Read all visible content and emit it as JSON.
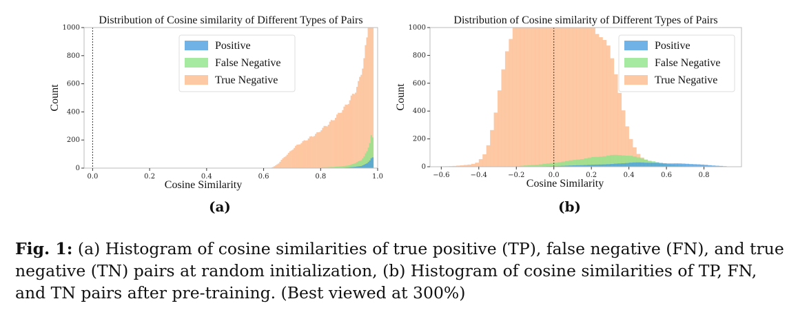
{
  "chart_data": [
    {
      "type": "histogram",
      "title": "Distribution of Cosine similarity of Different Types of Pairs",
      "xlabel": "Cosine Similarity",
      "ylabel": "Count",
      "xlim": [
        -0.03,
        1.0
      ],
      "ylim": [
        0,
        1000
      ],
      "xticks": [
        "0.0",
        "0.2",
        "0.4",
        "0.6",
        "0.8",
        "1.0"
      ],
      "yticks": [
        "0",
        "200",
        "400",
        "600",
        "800",
        "1000"
      ],
      "vline_at": 0.0,
      "legend_position": "upper-center",
      "bin_width": 0.005,
      "series": [
        {
          "name": "Positive",
          "color": "#4d9fe0",
          "bins": [
            [
              0.88,
              3
            ],
            [
              0.9,
              6
            ],
            [
              0.92,
              10
            ],
            [
              0.94,
              16
            ],
            [
              0.95,
              24
            ],
            [
              0.96,
              36
            ],
            [
              0.97,
              55
            ],
            [
              0.975,
              70
            ],
            [
              0.98,
              78
            ],
            [
              0.985,
              40
            ]
          ]
        },
        {
          "name": "False Negative",
          "color": "#90e38a",
          "bins": [
            [
              0.8,
              5
            ],
            [
              0.84,
              8
            ],
            [
              0.88,
              15
            ],
            [
              0.9,
              22
            ],
            [
              0.92,
              38
            ],
            [
              0.94,
              60
            ],
            [
              0.95,
              85
            ],
            [
              0.96,
              125
            ],
            [
              0.97,
              185
            ],
            [
              0.975,
              235
            ],
            [
              0.98,
              220
            ],
            [
              0.985,
              90
            ]
          ]
        },
        {
          "name": "True Negative",
          "color": "#fdbb8f",
          "bins": [
            [
              0.62,
              0
            ],
            [
              0.63,
              8
            ],
            [
              0.64,
              20
            ],
            [
              0.65,
              35
            ],
            [
              0.66,
              60
            ],
            [
              0.67,
              80
            ],
            [
              0.68,
              100
            ],
            [
              0.69,
              120
            ],
            [
              0.7,
              140
            ],
            [
              0.71,
              160
            ],
            [
              0.72,
              175
            ],
            [
              0.73,
              185
            ],
            [
              0.74,
              200
            ],
            [
              0.75,
              210
            ],
            [
              0.76,
              225
            ],
            [
              0.77,
              235
            ],
            [
              0.78,
              250
            ],
            [
              0.79,
              260
            ],
            [
              0.8,
              285
            ],
            [
              0.81,
              300
            ],
            [
              0.82,
              315
            ],
            [
              0.83,
              335
            ],
            [
              0.84,
              350
            ],
            [
              0.85,
              375
            ],
            [
              0.86,
              395
            ],
            [
              0.87,
              420
            ],
            [
              0.88,
              440
            ],
            [
              0.89,
              470
            ],
            [
              0.9,
              500
            ],
            [
              0.91,
              535
            ],
            [
              0.92,
              570
            ],
            [
              0.93,
              620
            ],
            [
              0.94,
              700
            ],
            [
              0.95,
              800
            ],
            [
              0.96,
              950
            ],
            [
              0.965,
              1000
            ],
            [
              0.97,
              1000
            ],
            [
              0.975,
              1000
            ],
            [
              0.98,
              1000
            ],
            [
              0.985,
              600
            ]
          ]
        }
      ]
    },
    {
      "type": "histogram",
      "title": "Distribution of Cosine similarity of Different Types of Pairs",
      "xlabel": "Cosine Similarity",
      "ylabel": "Count",
      "xlim": [
        -0.66,
        1.0
      ],
      "ylim": [
        0,
        1000
      ],
      "xticks": [
        "−0.6",
        "−0.4",
        "−0.2",
        "0.0",
        "0.2",
        "0.4",
        "0.6",
        "0.8"
      ],
      "yticks": [
        "0",
        "200",
        "400",
        "600",
        "800",
        "1000"
      ],
      "vline_at": 0.0,
      "legend_position": "upper-right",
      "bin_width": 0.02,
      "series": [
        {
          "name": "Positive",
          "color": "#4d9fe0",
          "bins": [
            [
              -0.1,
              2
            ],
            [
              0.0,
              5
            ],
            [
              0.1,
              10
            ],
            [
              0.2,
              15
            ],
            [
              0.3,
              20
            ],
            [
              0.35,
              25
            ],
            [
              0.4,
              30
            ],
            [
              0.45,
              32
            ],
            [
              0.5,
              30
            ],
            [
              0.55,
              28
            ],
            [
              0.6,
              25
            ],
            [
              0.65,
              24
            ],
            [
              0.7,
              22
            ],
            [
              0.75,
              18
            ],
            [
              0.8,
              14
            ],
            [
              0.85,
              8
            ],
            [
              0.9,
              4
            ],
            [
              0.94,
              0
            ]
          ]
        },
        {
          "name": "False Negative",
          "color": "#90e38a",
          "bins": [
            [
              -0.2,
              5
            ],
            [
              -0.1,
              15
            ],
            [
              0.0,
              30
            ],
            [
              0.1,
              50
            ],
            [
              0.15,
              60
            ],
            [
              0.2,
              70
            ],
            [
              0.25,
              78
            ],
            [
              0.3,
              85
            ],
            [
              0.35,
              88
            ],
            [
              0.4,
              80
            ],
            [
              0.45,
              65
            ],
            [
              0.5,
              45
            ],
            [
              0.55,
              30
            ],
            [
              0.6,
              18
            ],
            [
              0.65,
              10
            ],
            [
              0.7,
              5
            ],
            [
              0.8,
              0
            ]
          ]
        },
        {
          "name": "True Negative",
          "color": "#fdbb8f",
          "bins": [
            [
              -0.6,
              3
            ],
            [
              -0.55,
              5
            ],
            [
              -0.5,
              10
            ],
            [
              -0.45,
              18
            ],
            [
              -0.42,
              30
            ],
            [
              -0.4,
              55
            ],
            [
              -0.38,
              90
            ],
            [
              -0.36,
              160
            ],
            [
              -0.34,
              280
            ],
            [
              -0.32,
              410
            ],
            [
              -0.3,
              560
            ],
            [
              -0.28,
              700
            ],
            [
              -0.26,
              840
            ],
            [
              -0.24,
              960
            ],
            [
              -0.22,
              1000
            ],
            [
              -0.2,
              1000
            ],
            [
              -0.18,
              1000
            ],
            [
              -0.16,
              1000
            ],
            [
              -0.14,
              1000
            ],
            [
              -0.12,
              1000
            ],
            [
              -0.1,
              1000
            ],
            [
              -0.08,
              1000
            ],
            [
              -0.06,
              1000
            ],
            [
              -0.04,
              1000
            ],
            [
              -0.02,
              1000
            ],
            [
              0.0,
              1000
            ],
            [
              0.02,
              1000
            ],
            [
              0.04,
              1000
            ],
            [
              0.06,
              1000
            ],
            [
              0.08,
              1000
            ],
            [
              0.1,
              1000
            ],
            [
              0.12,
              1000
            ],
            [
              0.14,
              1000
            ],
            [
              0.16,
              1000
            ],
            [
              0.18,
              1000
            ],
            [
              0.2,
              1000
            ],
            [
              0.22,
              1000
            ],
            [
              0.24,
              990
            ],
            [
              0.26,
              950
            ],
            [
              0.28,
              880
            ],
            [
              0.3,
              780
            ],
            [
              0.32,
              680
            ],
            [
              0.34,
              560
            ],
            [
              0.36,
              430
            ],
            [
              0.38,
              300
            ],
            [
              0.4,
              200
            ],
            [
              0.42,
              140
            ],
            [
              0.44,
              95
            ],
            [
              0.46,
              70
            ],
            [
              0.48,
              55
            ],
            [
              0.5,
              40
            ],
            [
              0.52,
              30
            ],
            [
              0.54,
              22
            ],
            [
              0.56,
              16
            ],
            [
              0.58,
              12
            ],
            [
              0.6,
              8
            ],
            [
              0.62,
              5
            ],
            [
              0.64,
              3
            ],
            [
              0.66,
              0
            ]
          ]
        }
      ]
    }
  ],
  "sublabels": [
    "(a)",
    "(b)"
  ],
  "caption": {
    "lead": "Fig. 1:",
    "text": " (a) Histogram of cosine similarities of true positive (TP), false negative (FN), and true negative (TN) pairs at random initialization, (b) Histogram of cosine similarities of TP, FN, and TN pairs after pre-training. (Best viewed at 300%)"
  }
}
